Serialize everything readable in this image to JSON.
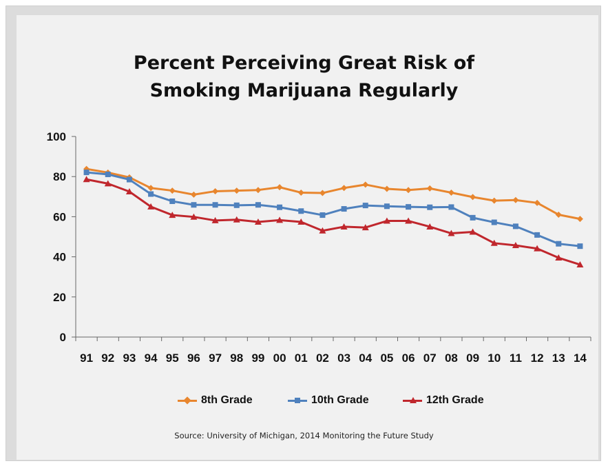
{
  "chart_data": {
    "type": "line",
    "title": "Percent Perceiving Great Risk of Smoking Marijuana Regularly",
    "title_lines": [
      "Percent Perceiving Great Risk of",
      "Smoking Marijuana Regularly"
    ],
    "x": [
      "91",
      "92",
      "93",
      "94",
      "95",
      "96",
      "97",
      "98",
      "99",
      "00",
      "01",
      "02",
      "03",
      "04",
      "05",
      "06",
      "07",
      "08",
      "09",
      "10",
      "11",
      "12",
      "13",
      "14"
    ],
    "ylim": [
      0,
      100
    ],
    "yticks": [
      0,
      20,
      40,
      60,
      80,
      100
    ],
    "xlabel": "",
    "ylabel": "",
    "grid": false,
    "legend_position": "bottom",
    "series": [
      {
        "name": "8th Grade",
        "color": "#e8862e",
        "marker": "diamond",
        "values": [
          83.8,
          82,
          79.6,
          74.3,
          73,
          71,
          72.7,
          73,
          73.3,
          74.7,
          72,
          71.8,
          74.3,
          76,
          73.9,
          73.3,
          74.1,
          72,
          69.8,
          68,
          68.3,
          66.9,
          61,
          58.9
        ]
      },
      {
        "name": "10th Grade",
        "color": "#4f81bd",
        "marker": "square",
        "values": [
          82.1,
          81.1,
          78.5,
          71.3,
          67.7,
          65.9,
          65.9,
          65.7,
          65.9,
          64.7,
          62.8,
          60.8,
          63.9,
          65.6,
          65.2,
          64.9,
          64.7,
          64.8,
          59.5,
          57.2,
          55.2,
          50.9,
          46.5,
          45.3
        ]
      },
      {
        "name": "12th Grade",
        "color": "#c0272d",
        "marker": "triangle",
        "values": [
          78.6,
          76.5,
          72.5,
          65,
          60.8,
          59.9,
          58.1,
          58.5,
          57.4,
          58.3,
          57.4,
          53,
          55,
          54.6,
          57.9,
          57.9,
          55,
          51.7,
          52.4,
          46.8,
          45.7,
          44.1,
          39.5,
          36.1
        ]
      }
    ]
  },
  "source": "Source: University of Michigan, 2014 Monitoring the Future Study"
}
